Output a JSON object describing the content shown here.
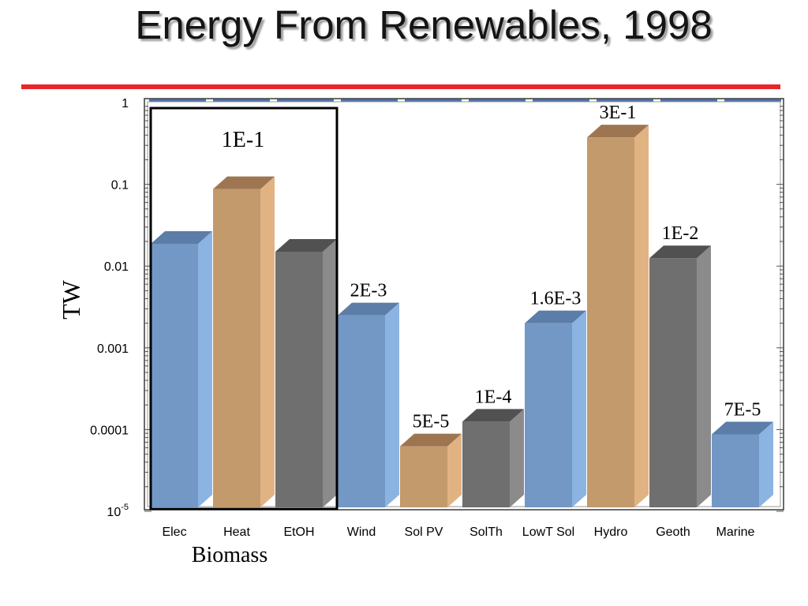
{
  "title_rule_color": "#E8252D",
  "palette": {
    "blue": {
      "front": "#7398C5",
      "side": "#8CB4E2",
      "top": "#5B7DA7"
    },
    "tan": {
      "front": "#C39A6C",
      "side": "#E1B383",
      "top": "#9D7651"
    },
    "grey": {
      "front": "#6F6F6F",
      "side": "#8B8B8B",
      "top": "#515151"
    }
  },
  "chart_data": {
    "type": "bar",
    "title": "Energy From Renewables, 1998",
    "xlabel": "",
    "ylabel": "TW",
    "y_scale": "log",
    "ylim": [
      1e-05,
      1
    ],
    "y_ticks": [
      {
        "value": 1,
        "label": "1"
      },
      {
        "value": 0.1,
        "label": "0.1"
      },
      {
        "value": 0.01,
        "label": "0.01"
      },
      {
        "value": 0.001,
        "label": "0.001"
      },
      {
        "value": 0.0001,
        "label": "0.0001"
      },
      {
        "value": 1e-05,
        "label": "10",
        "sup": "-5"
      }
    ],
    "categories": [
      "Elec",
      "Heat",
      "EtOH",
      "Wind",
      "Sol PV",
      "SolTh",
      "LowT Sol",
      "Hydro",
      "Geoth",
      "Marine"
    ],
    "values": [
      0.015,
      0.07,
      0.012,
      0.002,
      5e-05,
      0.0001,
      0.0016,
      0.3,
      0.01,
      7e-05
    ],
    "data_labels": [
      "",
      "",
      "",
      "2E-3",
      "5E-5",
      "1E-4",
      "1.6E-3",
      "3E-1",
      "1E-2",
      "7E-5"
    ],
    "bar_colors": [
      "blue",
      "tan",
      "grey",
      "blue",
      "tan",
      "grey",
      "blue",
      "tan",
      "grey",
      "blue"
    ],
    "groups": [
      {
        "label": "Biomass",
        "category_indices": [
          0,
          1,
          2
        ],
        "total": 0.1,
        "total_label": "1E-1"
      }
    ],
    "grid": false
  }
}
